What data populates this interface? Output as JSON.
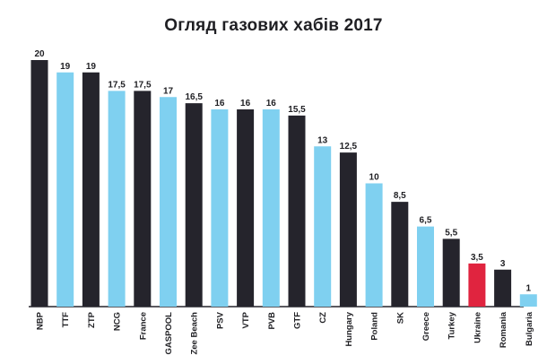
{
  "chart_data": {
    "type": "bar",
    "title": "Огляд газових хабів 2017",
    "xlabel": "",
    "ylabel": "",
    "ylim": [
      0,
      20
    ],
    "grid": false,
    "legend": "none",
    "categories": [
      "NBP",
      "TTF",
      "ZTP",
      "NCG",
      "France",
      "GASPOOL",
      "Zee Beach",
      "PSV",
      "VTP",
      "PVB",
      "GTF",
      "CZ",
      "Hungary",
      "Poland",
      "SK",
      "Greece",
      "Turkey",
      "Ukraine",
      "Romania",
      "Bulgaria"
    ],
    "values": [
      20,
      19,
      19,
      17.5,
      17.5,
      17,
      16.5,
      16,
      16,
      16,
      15.5,
      13,
      12.5,
      10,
      8.5,
      6.5,
      5.5,
      3.5,
      3,
      1
    ],
    "value_labels": [
      "20",
      "19",
      "19",
      "17,5",
      "17,5",
      "17",
      "16,5",
      "16",
      "16",
      "16",
      "15,5",
      "13",
      "12,5",
      "10",
      "8,5",
      "6,5",
      "5,5",
      "3,5",
      "3",
      "1"
    ],
    "bar_colors": [
      "#25242c",
      "#7fd0f0",
      "#25242c",
      "#7fd0f0",
      "#25242c",
      "#7fd0f0",
      "#25242c",
      "#7fd0f0",
      "#25242c",
      "#7fd0f0",
      "#25242c",
      "#7fd0f0",
      "#25242c",
      "#7fd0f0",
      "#25242c",
      "#7fd0f0",
      "#25242c",
      "#e0243f",
      "#25242c",
      "#7fd0f0"
    ],
    "highlight_category": "Ukraine",
    "highlight_color": "#d62845",
    "text_color": "#1f1f23"
  }
}
